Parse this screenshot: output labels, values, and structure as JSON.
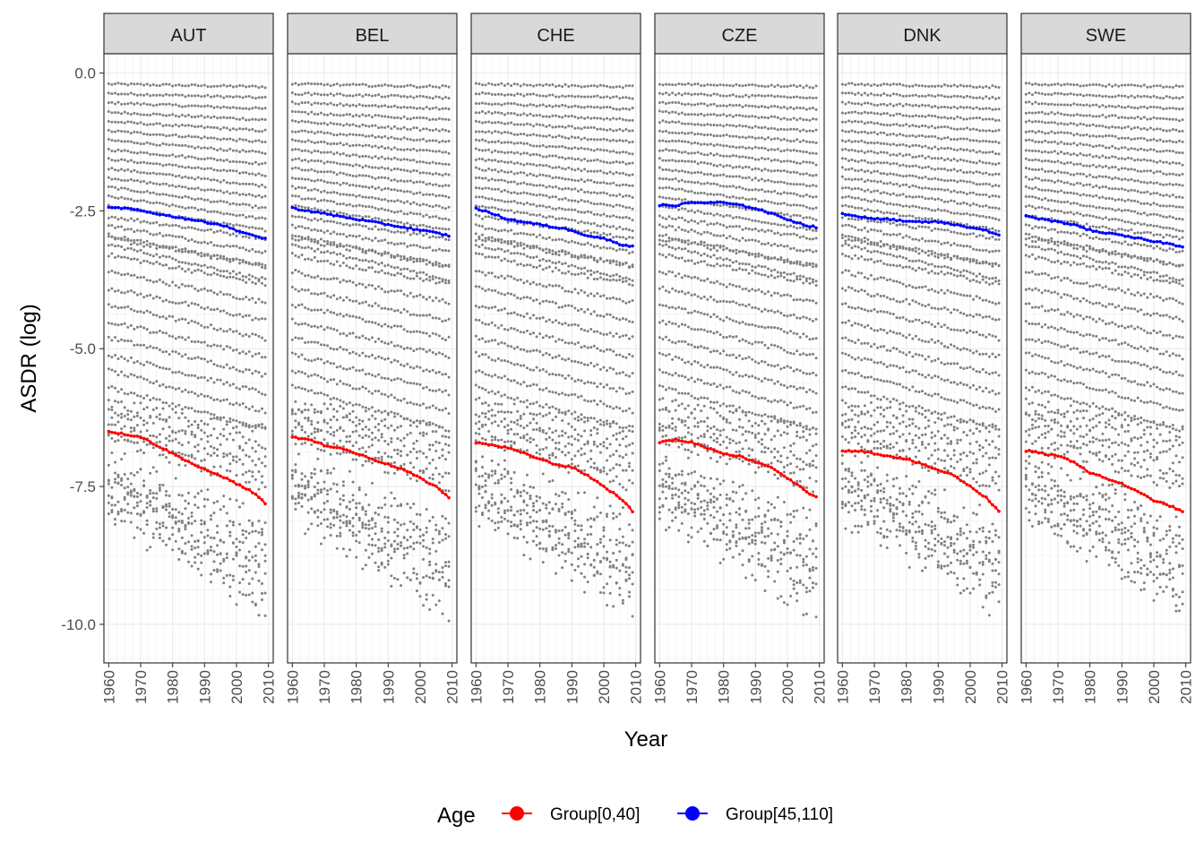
{
  "chart_data": {
    "type": "scatter",
    "facets": [
      "AUT",
      "BEL",
      "CHE",
      "CZE",
      "DNK",
      "SWE"
    ],
    "xlabel": "Year",
    "ylabel": "ASDR (log)",
    "xlim": [
      1958.5,
      2011.5
    ],
    "ylim": [
      -10.7,
      0.35
    ],
    "x_ticks": [
      1960,
      1970,
      1980,
      1990,
      2000,
      2010
    ],
    "y_ticks": [
      0,
      -2.5,
      -5,
      -7.5,
      -10
    ],
    "y_tick_labels": [
      "0.0",
      "-2.5",
      "-5.0",
      "-7.5",
      "-10.0"
    ],
    "x_tick_labels": [
      "1960",
      "1970",
      "1980",
      "1990",
      "2000",
      "2010"
    ],
    "grid": true,
    "legend": {
      "title": "Age",
      "placement": "bottom",
      "entries": [
        {
          "label": "Group[0,40]",
          "color": "#ff0000"
        },
        {
          "label": "Group[45,110]",
          "color": "#0000ff"
        }
      ]
    },
    "background_points_color": "#808080",
    "years": [
      1960,
      1965,
      1970,
      1975,
      1980,
      1985,
      1990,
      1995,
      2000,
      2005,
      2009
    ],
    "series": [
      {
        "name": "Group[0,40]",
        "color": "#ff0000",
        "facet": "AUT",
        "y": [
          -6.5,
          -6.55,
          -6.6,
          -6.75,
          -6.9,
          -7.05,
          -7.2,
          -7.3,
          -7.45,
          -7.6,
          -7.8
        ]
      },
      {
        "name": "Group[45,110]",
        "color": "#0000ff",
        "facet": "AUT",
        "y": [
          -2.45,
          -2.45,
          -2.5,
          -2.55,
          -2.6,
          -2.65,
          -2.7,
          -2.75,
          -2.85,
          -2.95,
          -3.0
        ]
      },
      {
        "name": "Group[0,40]",
        "color": "#ff0000",
        "facet": "BEL",
        "y": [
          -6.6,
          -6.65,
          -6.75,
          -6.8,
          -6.9,
          -7.0,
          -7.1,
          -7.2,
          -7.35,
          -7.5,
          -7.7
        ]
      },
      {
        "name": "Group[45,110]",
        "color": "#0000ff",
        "facet": "BEL",
        "y": [
          -2.45,
          -2.5,
          -2.55,
          -2.6,
          -2.65,
          -2.7,
          -2.75,
          -2.8,
          -2.85,
          -2.9,
          -2.95
        ]
      },
      {
        "name": "Group[0,40]",
        "color": "#ff0000",
        "facet": "CHE",
        "y": [
          -6.7,
          -6.75,
          -6.8,
          -6.9,
          -7.0,
          -7.1,
          -7.15,
          -7.3,
          -7.5,
          -7.7,
          -7.95
        ]
      },
      {
        "name": "Group[45,110]",
        "color": "#0000ff",
        "facet": "CHE",
        "y": [
          -2.45,
          -2.55,
          -2.65,
          -2.7,
          -2.75,
          -2.8,
          -2.85,
          -2.95,
          -3.0,
          -3.1,
          -3.15
        ]
      },
      {
        "name": "Group[0,40]",
        "color": "#ff0000",
        "facet": "CZE",
        "y": [
          -6.7,
          -6.65,
          -6.7,
          -6.8,
          -6.9,
          -6.95,
          -7.05,
          -7.15,
          -7.35,
          -7.55,
          -7.7
        ]
      },
      {
        "name": "Group[45,110]",
        "color": "#0000ff",
        "facet": "CZE",
        "y": [
          -2.4,
          -2.4,
          -2.35,
          -2.35,
          -2.35,
          -2.4,
          -2.45,
          -2.55,
          -2.65,
          -2.75,
          -2.8
        ]
      },
      {
        "name": "Group[0,40]",
        "color": "#ff0000",
        "facet": "DNK",
        "y": [
          -6.85,
          -6.85,
          -6.9,
          -6.95,
          -7.0,
          -7.1,
          -7.2,
          -7.3,
          -7.5,
          -7.7,
          -7.95
        ]
      },
      {
        "name": "Group[45,110]",
        "color": "#0000ff",
        "facet": "DNK",
        "y": [
          -2.55,
          -2.6,
          -2.65,
          -2.65,
          -2.7,
          -2.7,
          -2.7,
          -2.75,
          -2.8,
          -2.85,
          -2.95
        ]
      },
      {
        "name": "Group[0,40]",
        "color": "#ff0000",
        "facet": "SWE",
        "y": [
          -6.85,
          -6.9,
          -6.95,
          -7.05,
          -7.25,
          -7.35,
          -7.45,
          -7.6,
          -7.75,
          -7.85,
          -7.95
        ]
      },
      {
        "name": "Group[45,110]",
        "color": "#0000ff",
        "facet": "SWE",
        "y": [
          -2.6,
          -2.65,
          -2.7,
          -2.75,
          -2.85,
          -2.9,
          -2.95,
          -3.0,
          -3.05,
          -3.1,
          -3.15
        ]
      }
    ]
  }
}
